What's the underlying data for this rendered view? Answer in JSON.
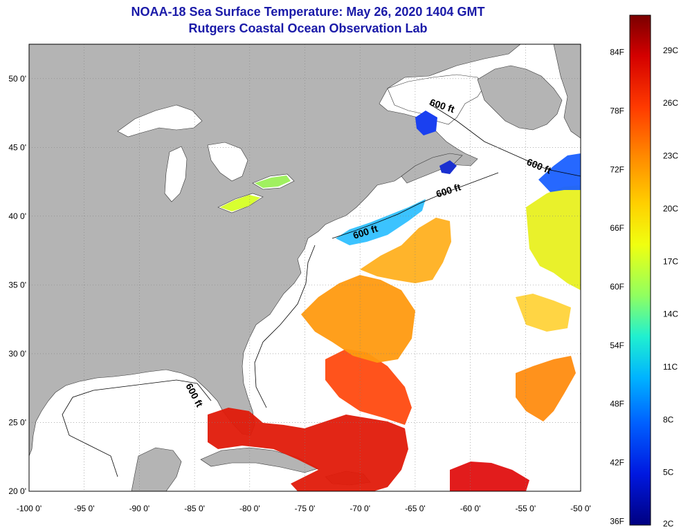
{
  "header": {
    "title": "NOAA-18 Sea Surface Temperature:  May 26, 2020 1404 GMT",
    "subtitle": "Rutgers Coastal Ocean Observation Lab"
  },
  "map": {
    "lon_range": [
      -100,
      -50
    ],
    "lat_range": [
      20,
      52.5
    ],
    "lon_ticks": [
      "-100 0'",
      "-95 0'",
      "-90 0'",
      "-85 0'",
      "-80 0'",
      "-75 0'",
      "-70 0'",
      "-65 0'",
      "-60 0'",
      "-55 0'",
      "-50 0'"
    ],
    "lat_ticks": [
      "20 0'",
      "25 0'",
      "30 0'",
      "35 0'",
      "40 0'",
      "45 0'",
      "50 0'"
    ],
    "contour_label": "600 ft",
    "colors": {
      "land": "#b4b4b4",
      "water_nodata": "#ffffff",
      "grid": "#808080"
    }
  },
  "colorbar": {
    "f_labels": [
      "84F",
      "78F",
      "72F",
      "66F",
      "60F",
      "54F",
      "48F",
      "42F",
      "36F"
    ],
    "c_labels": [
      "29C",
      "26C",
      "23C",
      "20C",
      "17C",
      "14C",
      "11C",
      "8C",
      "5C",
      "2C"
    ],
    "range_c": [
      2,
      31
    ],
    "stops": [
      "#7a0000",
      "#d40000",
      "#ff3a00",
      "#ff8c00",
      "#ffd000",
      "#f0ff10",
      "#90ff60",
      "#20f0d0",
      "#00b4ff",
      "#0060ff",
      "#0018e0",
      "#000080"
    ]
  }
}
